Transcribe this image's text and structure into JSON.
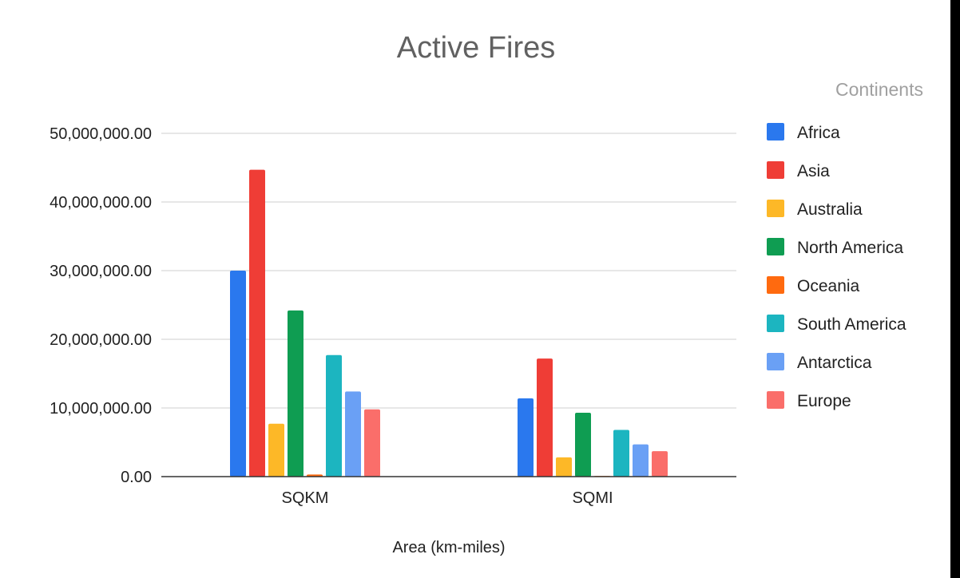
{
  "chart_data": {
    "type": "bar",
    "title": "Active Fires",
    "xlabel": "Area (km-miles)",
    "ylabel": "",
    "ylim": [
      0,
      50000000
    ],
    "yticks": [
      0,
      10000000,
      20000000,
      30000000,
      40000000,
      50000000
    ],
    "ytick_labels": [
      "0.00",
      "10,000,000.00",
      "20,000,000.00",
      "30,000,000.00",
      "40,000,000.00",
      "50,000,000.00"
    ],
    "categories": [
      "SQKM",
      "SQMI"
    ],
    "legend_title": "Continents",
    "legend_position": "right",
    "grid": true,
    "series": [
      {
        "name": "Africa",
        "color": "#2a78ee",
        "values": [
          30000000,
          11400000
        ]
      },
      {
        "name": "Asia",
        "color": "#ef3d36",
        "values": [
          44700000,
          17200000
        ]
      },
      {
        "name": "Australia",
        "color": "#fdb827",
        "values": [
          7700000,
          2800000
        ]
      },
      {
        "name": "North America",
        "color": "#0f9d52",
        "values": [
          24200000,
          9300000
        ]
      },
      {
        "name": "Oceania",
        "color": "#ff6a0f",
        "values": [
          300000,
          100000
        ]
      },
      {
        "name": "South America",
        "color": "#1cb5c0",
        "values": [
          17700000,
          6800000
        ]
      },
      {
        "name": "Antarctica",
        "color": "#6aa0f5",
        "values": [
          12400000,
          4700000
        ]
      },
      {
        "name": "Europe",
        "color": "#fa6e6a",
        "values": [
          9800000,
          3700000
        ]
      }
    ]
  }
}
